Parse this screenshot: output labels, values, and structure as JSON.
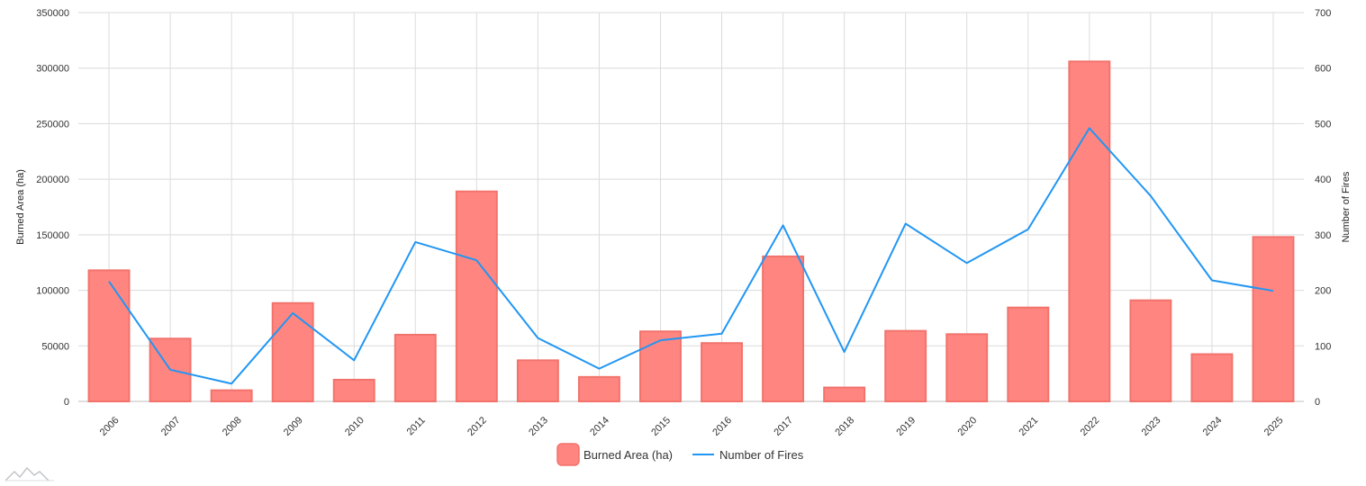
{
  "chart_data": {
    "type": "bar",
    "categories": [
      "2006",
      "2007",
      "2008",
      "2009",
      "2010",
      "2011",
      "2012",
      "2013",
      "2014",
      "2015",
      "2016",
      "2017",
      "2018",
      "2019",
      "2020",
      "2021",
      "2022",
      "2023",
      "2024",
      "2025"
    ],
    "series": [
      {
        "name": "Burned Area (ha)",
        "type": "bar",
        "axis": "left",
        "color": "#ff8580",
        "values": [
          118000,
          56500,
          10000,
          88500,
          19500,
          60000,
          189000,
          37000,
          22000,
          63000,
          52500,
          130500,
          12500,
          63500,
          60500,
          84500,
          306000,
          91000,
          42500,
          148000
        ]
      },
      {
        "name": "Number of Fires",
        "type": "line",
        "axis": "right",
        "color": "#2196f3",
        "values": [
          216,
          57,
          32,
          159,
          74,
          287,
          254,
          114,
          59,
          110,
          122,
          317,
          89,
          320,
          249,
          310,
          492,
          370,
          218,
          199
        ]
      }
    ],
    "ylabel": "Burned Area (ha)",
    "y2label": "Number of Fires",
    "ylim": [
      0,
      350000
    ],
    "y2lim": [
      0,
      700
    ],
    "yticks": [
      "0",
      "50000",
      "100000",
      "150000",
      "200000",
      "250000",
      "300000",
      "350000"
    ],
    "y2ticks": [
      "0",
      "100",
      "200",
      "300",
      "400",
      "500",
      "600",
      "700"
    ],
    "grid": true,
    "legend_position": "bottom-center"
  },
  "watermark_icon": "mountain-logo-icon"
}
